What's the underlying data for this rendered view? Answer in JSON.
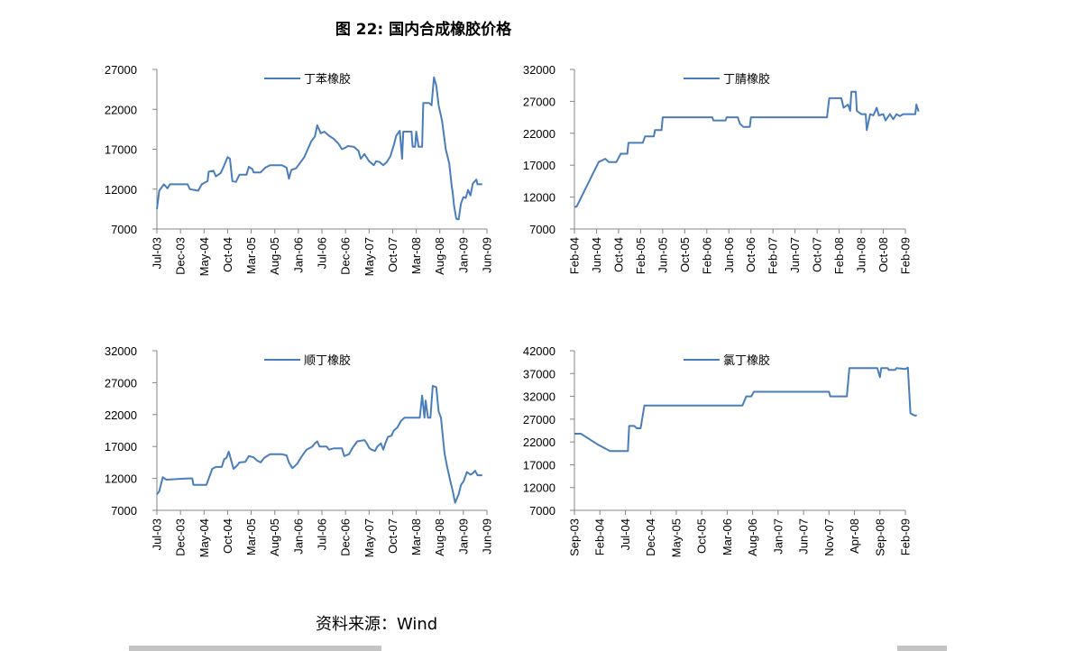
{
  "page": {
    "title": "图 22:  国内合成橡胶价格",
    "source": "资料来源：Wind"
  },
  "colors": {
    "line": "#4a7ebb",
    "axis": "#868686",
    "text": "#000000"
  },
  "chart_data": [
    {
      "type": "line",
      "series": [
        {
          "name": "丁苯橡胶"
        }
      ],
      "yticks": [
        "27000",
        "22000",
        "17000",
        "12000",
        "7000"
      ],
      "ylim": [
        7000,
        27000
      ],
      "xticks": [
        "Jul-03",
        "Dec-03",
        "May-04",
        "Oct-04",
        "Mar-05",
        "Aug-05",
        "Jan-06",
        "Jul-06",
        "Dec-06",
        "May-07",
        "Oct-07",
        "Mar-08",
        "Aug-08",
        "Jan-09",
        "Jun-09"
      ],
      "points": [
        [
          0,
          9500
        ],
        [
          0.1,
          11800
        ],
        [
          0.3,
          12600
        ],
        [
          0.45,
          12100
        ],
        [
          0.55,
          12600
        ],
        [
          1.3,
          12600
        ],
        [
          1.4,
          12000
        ],
        [
          1.75,
          11800
        ],
        [
          1.9,
          12600
        ],
        [
          2.15,
          13000
        ],
        [
          2.2,
          14200
        ],
        [
          2.4,
          14300
        ],
        [
          2.5,
          13600
        ],
        [
          2.7,
          14000
        ],
        [
          2.8,
          14600
        ],
        [
          2.9,
          15300
        ],
        [
          3.0,
          16000
        ],
        [
          3.1,
          15800
        ],
        [
          3.2,
          13000
        ],
        [
          3.35,
          12900
        ],
        [
          3.5,
          13800
        ],
        [
          3.8,
          13800
        ],
        [
          3.9,
          14800
        ],
        [
          4.05,
          14500
        ],
        [
          4.1,
          14100
        ],
        [
          4.4,
          14100
        ],
        [
          4.6,
          14700
        ],
        [
          4.8,
          15000
        ],
        [
          5.3,
          15000
        ],
        [
          5.5,
          14700
        ],
        [
          5.6,
          13300
        ],
        [
          5.7,
          14400
        ],
        [
          5.9,
          14600
        ],
        [
          6.0,
          15000
        ],
        [
          6.15,
          15600
        ],
        [
          6.25,
          16000
        ],
        [
          6.4,
          17000
        ],
        [
          6.55,
          18000
        ],
        [
          6.7,
          18600
        ],
        [
          6.8,
          20000
        ],
        [
          6.95,
          19000
        ],
        [
          7.1,
          19200
        ],
        [
          7.3,
          18700
        ],
        [
          7.5,
          18300
        ],
        [
          7.7,
          17700
        ],
        [
          7.85,
          17000
        ],
        [
          8.0,
          17200
        ],
        [
          8.1,
          17400
        ],
        [
          8.35,
          17300
        ],
        [
          8.55,
          16800
        ],
        [
          8.65,
          15800
        ],
        [
          8.8,
          16400
        ],
        [
          9.0,
          15500
        ],
        [
          9.2,
          15000
        ],
        [
          9.3,
          15500
        ],
        [
          9.45,
          15400
        ],
        [
          9.6,
          15000
        ],
        [
          9.75,
          15400
        ],
        [
          9.9,
          16100
        ],
        [
          10.05,
          17500
        ],
        [
          10.15,
          18700
        ],
        [
          10.3,
          19300
        ],
        [
          10.4,
          15800
        ],
        [
          10.45,
          19200
        ],
        [
          10.8,
          19200
        ],
        [
          10.85,
          17300
        ],
        [
          10.95,
          17300
        ],
        [
          11.0,
          19200
        ],
        [
          11.1,
          17300
        ],
        [
          11.25,
          17300
        ],
        [
          11.3,
          22800
        ],
        [
          11.55,
          22800
        ],
        [
          11.65,
          22500
        ],
        [
          11.75,
          26000
        ],
        [
          11.85,
          25000
        ],
        [
          11.95,
          22500
        ],
        [
          12.1,
          20500
        ],
        [
          12.25,
          17000
        ],
        [
          12.4,
          15200
        ],
        [
          12.5,
          12500
        ],
        [
          12.55,
          11500
        ],
        [
          12.6,
          10000
        ],
        [
          12.7,
          8300
        ],
        [
          12.8,
          8200
        ],
        [
          12.9,
          10200
        ],
        [
          13.0,
          11000
        ],
        [
          13.1,
          10900
        ],
        [
          13.2,
          11900
        ],
        [
          13.3,
          11200
        ],
        [
          13.4,
          12700
        ],
        [
          13.55,
          13200
        ],
        [
          13.6,
          12600
        ],
        [
          13.8,
          12600
        ]
      ]
    },
    {
      "type": "line",
      "series": [
        {
          "name": "丁腈橡胶"
        }
      ],
      "yticks": [
        "32000",
        "27000",
        "22000",
        "17000",
        "12000",
        "7000"
      ],
      "ylim": [
        7000,
        32000
      ],
      "xticks": [
        "Feb-04",
        "Jun-04",
        "Oct-04",
        "Feb-05",
        "Jun-05",
        "Oct-05",
        "Feb-06",
        "Jun-06",
        "Oct-06",
        "Feb-07",
        "Jun-07",
        "Oct-07",
        "Feb-08",
        "Jun-08",
        "Oct-08",
        "Feb-09"
      ],
      "points": [
        [
          0,
          10500
        ],
        [
          0.1,
          10500
        ],
        [
          1.1,
          17500
        ],
        [
          1.4,
          18000
        ],
        [
          1.55,
          17500
        ],
        [
          1.9,
          17500
        ],
        [
          2.1,
          18800
        ],
        [
          2.4,
          18800
        ],
        [
          2.45,
          20500
        ],
        [
          3.1,
          20500
        ],
        [
          3.2,
          21500
        ],
        [
          3.6,
          21500
        ],
        [
          3.65,
          22500
        ],
        [
          3.95,
          22500
        ],
        [
          4.0,
          24500
        ],
        [
          6.25,
          24500
        ],
        [
          6.3,
          24000
        ],
        [
          6.85,
          24000
        ],
        [
          6.9,
          24500
        ],
        [
          7.4,
          24500
        ],
        [
          7.5,
          23500
        ],
        [
          7.65,
          23000
        ],
        [
          7.95,
          23000
        ],
        [
          8.0,
          24500
        ],
        [
          11.45,
          24500
        ],
        [
          11.55,
          27500
        ],
        [
          12.1,
          27500
        ],
        [
          12.2,
          26000
        ],
        [
          12.4,
          26500
        ],
        [
          12.5,
          25500
        ],
        [
          12.55,
          28500
        ],
        [
          12.75,
          28500
        ],
        [
          12.8,
          25500
        ],
        [
          13.0,
          25000
        ],
        [
          13.2,
          25000
        ],
        [
          13.25,
          22500
        ],
        [
          13.4,
          25000
        ],
        [
          13.55,
          24800
        ],
        [
          13.7,
          26000
        ],
        [
          13.8,
          24800
        ],
        [
          14.0,
          25000
        ],
        [
          14.1,
          24000
        ],
        [
          14.3,
          25000
        ],
        [
          14.45,
          24200
        ],
        [
          14.6,
          25000
        ],
        [
          14.75,
          24700
        ],
        [
          14.9,
          25000
        ],
        [
          15.45,
          25000
        ],
        [
          15.5,
          26500
        ],
        [
          15.6,
          25400
        ]
      ]
    },
    {
      "type": "line",
      "series": [
        {
          "name": "顺丁橡胶"
        }
      ],
      "yticks": [
        "32000",
        "27000",
        "22000",
        "17000",
        "12000",
        "7000"
      ],
      "ylim": [
        7000,
        32000
      ],
      "xticks": [
        "Jul-03",
        "Dec-03",
        "May-04",
        "Oct-04",
        "Mar-05",
        "Aug-05",
        "Jan-06",
        "Jul-06",
        "Dec-06",
        "May-07",
        "Oct-07",
        "Mar-08",
        "Aug-08",
        "Jan-09",
        "Jun-09"
      ],
      "points": [
        [
          0,
          9500
        ],
        [
          0.1,
          10000
        ],
        [
          0.25,
          12200
        ],
        [
          0.4,
          11800
        ],
        [
          1.3,
          12000
        ],
        [
          1.5,
          12000
        ],
        [
          1.55,
          11000
        ],
        [
          2.1,
          11000
        ],
        [
          2.2,
          12000
        ],
        [
          2.35,
          13500
        ],
        [
          2.5,
          13800
        ],
        [
          2.75,
          13800
        ],
        [
          2.85,
          15000
        ],
        [
          2.95,
          15200
        ],
        [
          3.05,
          16200
        ],
        [
          3.15,
          14800
        ],
        [
          3.25,
          13500
        ],
        [
          3.4,
          14000
        ],
        [
          3.5,
          14500
        ],
        [
          3.75,
          14600
        ],
        [
          3.9,
          15500
        ],
        [
          4.1,
          15300
        ],
        [
          4.25,
          14800
        ],
        [
          4.4,
          14500
        ],
        [
          4.55,
          15200
        ],
        [
          4.8,
          15800
        ],
        [
          5.3,
          15800
        ],
        [
          5.5,
          15600
        ],
        [
          5.6,
          14500
        ],
        [
          5.75,
          13600
        ],
        [
          5.95,
          14300
        ],
        [
          6.15,
          15500
        ],
        [
          6.35,
          16500
        ],
        [
          6.6,
          17000
        ],
        [
          6.7,
          17500
        ],
        [
          6.8,
          17800
        ],
        [
          6.9,
          17000
        ],
        [
          7.2,
          17000
        ],
        [
          7.3,
          16500
        ],
        [
          7.5,
          16700
        ],
        [
          7.85,
          16700
        ],
        [
          7.95,
          15500
        ],
        [
          8.15,
          15800
        ],
        [
          8.3,
          16800
        ],
        [
          8.5,
          17800
        ],
        [
          8.8,
          18000
        ],
        [
          8.9,
          17500
        ],
        [
          9.0,
          16800
        ],
        [
          9.1,
          16500
        ],
        [
          9.25,
          16300
        ],
        [
          9.35,
          17000
        ],
        [
          9.5,
          17500
        ],
        [
          9.6,
          16500
        ],
        [
          9.7,
          17600
        ],
        [
          9.8,
          18500
        ],
        [
          9.95,
          18700
        ],
        [
          10.05,
          19500
        ],
        [
          10.2,
          20000
        ],
        [
          10.35,
          21000
        ],
        [
          10.5,
          21500
        ],
        [
          11.15,
          21500
        ],
        [
          11.25,
          25000
        ],
        [
          11.35,
          21500
        ],
        [
          11.4,
          24200
        ],
        [
          11.5,
          21500
        ],
        [
          11.6,
          21500
        ],
        [
          11.7,
          26500
        ],
        [
          11.85,
          26300
        ],
        [
          11.95,
          22500
        ],
        [
          12.05,
          21500
        ],
        [
          12.2,
          16000
        ],
        [
          12.3,
          14000
        ],
        [
          12.45,
          11500
        ],
        [
          12.55,
          10000
        ],
        [
          12.65,
          8200
        ],
        [
          12.8,
          9500
        ],
        [
          12.9,
          11000
        ],
        [
          13.0,
          11500
        ],
        [
          13.15,
          13000
        ],
        [
          13.3,
          12600
        ],
        [
          13.4,
          12800
        ],
        [
          13.5,
          13200
        ],
        [
          13.6,
          12500
        ],
        [
          13.8,
          12500
        ]
      ]
    },
    {
      "type": "line",
      "series": [
        {
          "name": "氯丁橡胶"
        }
      ],
      "yticks": [
        "42000",
        "37000",
        "32000",
        "27000",
        "22000",
        "17000",
        "12000",
        "7000"
      ],
      "ylim": [
        7000,
        42000
      ],
      "xticks": [
        "Sep-03",
        "Feb-04",
        "Jul-04",
        "Dec-04",
        "May-05",
        "Oct-05",
        "Mar-06",
        "Aug-06",
        "Jan-07",
        "Jun-07",
        "Nov-07",
        "Apr-08",
        "Sep-08",
        "Feb-09"
      ],
      "points": [
        [
          0,
          23800
        ],
        [
          0.25,
          23800
        ],
        [
          0.9,
          21500
        ],
        [
          1.4,
          20000
        ],
        [
          2.1,
          20000
        ],
        [
          2.15,
          25500
        ],
        [
          2.35,
          25500
        ],
        [
          2.45,
          25000
        ],
        [
          2.6,
          25000
        ],
        [
          2.75,
          30000
        ],
        [
          6.6,
          30000
        ],
        [
          6.75,
          32000
        ],
        [
          6.95,
          32000
        ],
        [
          7.05,
          33000
        ],
        [
          10.0,
          33000
        ],
        [
          10.05,
          32000
        ],
        [
          10.7,
          32000
        ],
        [
          10.8,
          38200
        ],
        [
          11.9,
          38200
        ],
        [
          12.0,
          36200
        ],
        [
          12.05,
          38200
        ],
        [
          12.3,
          38200
        ],
        [
          12.35,
          37800
        ],
        [
          12.6,
          37800
        ],
        [
          12.65,
          38200
        ],
        [
          13.0,
          38000
        ],
        [
          13.1,
          38300
        ],
        [
          13.2,
          28300
        ],
        [
          13.35,
          27800
        ],
        [
          13.45,
          27800
        ]
      ]
    }
  ]
}
